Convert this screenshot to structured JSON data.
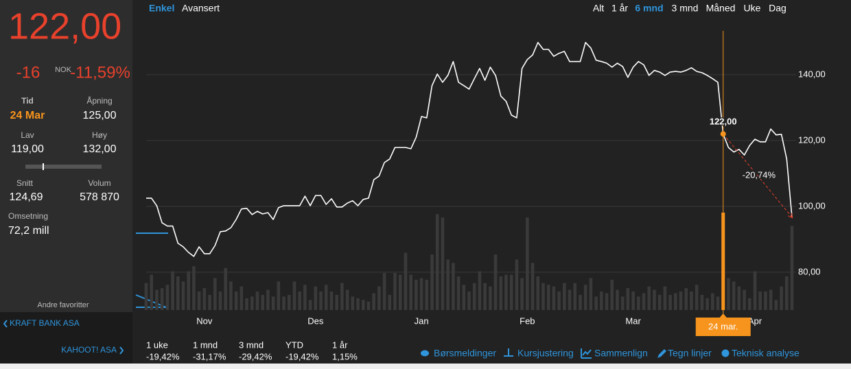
{
  "sidebar": {
    "price": "122,00",
    "change": "-16",
    "currency": "NOK",
    "change_pct": "-11,59%",
    "fields": [
      {
        "label": "Tid",
        "value": "24 Mar"
      },
      {
        "label": "Åpning",
        "value": "125,00"
      },
      {
        "label": "Lav",
        "value": "119,00"
      },
      {
        "label": "Høy",
        "value": "132,00"
      },
      {
        "label": "Snitt",
        "value": "124,69"
      },
      {
        "label": "Volum",
        "value": "578 870"
      },
      {
        "label": "Omsetning",
        "value": "72,2 mill"
      }
    ],
    "favorites_title": "Andre favoritter",
    "prev_link": "KRAFT BANK ASA",
    "next_link": "KAHOOT! ASA"
  },
  "modes": [
    "Enkel",
    "Avansert"
  ],
  "ranges": [
    "Alt",
    "1 år",
    "6 mnd",
    "3 mnd",
    "Måned",
    "Uke",
    "Dag"
  ],
  "returns": [
    {
      "label": "1 uke",
      "value": "-19,42%"
    },
    {
      "label": "1 mnd",
      "value": "-31,17%"
    },
    {
      "label": "3 mnd",
      "value": "-29,42%"
    },
    {
      "label": "YTD",
      "value": "-19,42%"
    },
    {
      "label": "1 år",
      "value": "1,15%"
    }
  ],
  "tools": [
    "Børsmeldinger",
    "Kursjustering",
    "Sammenlign",
    "Tegn linjer",
    "Teknisk analyse"
  ],
  "chart_data": {
    "type": "line",
    "color": "#ffffff",
    "volume_color": "#3a3a3a",
    "highlight_color": "#f7941d",
    "grid": true,
    "ylim": [
      68.5,
      162.7
    ],
    "yticks": [
      {
        "value": 80,
        "label": "80,00"
      },
      {
        "value": 100,
        "label": "100,00"
      },
      {
        "value": 120,
        "label": "120,00"
      },
      {
        "value": 140,
        "label": "140,00"
      }
    ],
    "categories": [
      null,
      null,
      null,
      null,
      null,
      null,
      null,
      null,
      null,
      null,
      null,
      "Nov",
      null,
      null,
      null,
      null,
      null,
      null,
      null,
      null,
      null,
      null,
      null,
      null,
      null,
      null,
      null,
      null,
      null,
      null,
      null,
      null,
      "Des",
      null,
      null,
      null,
      null,
      null,
      null,
      null,
      null,
      null,
      null,
      null,
      null,
      null,
      null,
      null,
      null,
      null,
      null,
      null,
      "Jan",
      null,
      null,
      null,
      null,
      null,
      null,
      null,
      null,
      null,
      null,
      null,
      null,
      null,
      null,
      null,
      null,
      null,
      null,
      null,
      "Feb",
      null,
      null,
      null,
      null,
      null,
      null,
      null,
      null,
      null,
      null,
      null,
      null,
      null,
      null,
      null,
      null,
      null,
      null,
      null,
      "Mar",
      null,
      null,
      null,
      null,
      null,
      null,
      null,
      null,
      null,
      null,
      null,
      null,
      null,
      null,
      null,
      null,
      null,
      null,
      null,
      null,
      null,
      null,
      "Apr",
      null,
      null,
      null,
      null,
      null,
      null,
      null
    ],
    "values": [
      102.5,
      102.5,
      100.2,
      95.0,
      94.0,
      94.0,
      88.8,
      87.7,
      86.0,
      84.8,
      87.7,
      85.6,
      85.6,
      88.1,
      92.3,
      92.5,
      93.5,
      96.0,
      99.2,
      99.4,
      97.5,
      98.5,
      97.7,
      98.1,
      96.0,
      99.6,
      100.2,
      100.2,
      100.2,
      100.2,
      103.1,
      100.2,
      103.3,
      103.3,
      100.6,
      102.3,
      99.8,
      99.8,
      101.0,
      101.7,
      100.2,
      102.1,
      102.5,
      108.1,
      109.2,
      113.3,
      114.4,
      117.9,
      117.9,
      117.9,
      117.5,
      121.0,
      127.3,
      126.9,
      136.7,
      140.2,
      137.7,
      139.8,
      144.0,
      137.7,
      136.7,
      135.6,
      138.8,
      141.9,
      138.3,
      142.3,
      139.8,
      133.5,
      131.9,
      127.7,
      126.9,
      141.9,
      144.6,
      146.0,
      149.8,
      147.7,
      147.7,
      145.6,
      146.5,
      147.1,
      144.0,
      144.0,
      144.0,
      149.8,
      148.1,
      144.4,
      144.0,
      143.5,
      142.3,
      143.5,
      142.5,
      139.2,
      142.3,
      144.0,
      143.0,
      139.8,
      141.3,
      140.8,
      139.8,
      140.8,
      141.0,
      140.8,
      141.3,
      142.1,
      141.0,
      140.6,
      139.8,
      138.8,
      137.7,
      122.0,
      117.9,
      116.5,
      117.3,
      115.6,
      118.5,
      120.4,
      119.6,
      119.6,
      123.5,
      121.7,
      121.9,
      114.4,
      96.7
    ],
    "value_labels": [
      null,
      null,
      null,
      null,
      null,
      null,
      null,
      null,
      null,
      null,
      null,
      null,
      null,
      null,
      null,
      null,
      null,
      null,
      null,
      null,
      null,
      null,
      null,
      null,
      null,
      null,
      null,
      null,
      null,
      null,
      null,
      null,
      null,
      null,
      null,
      null,
      null,
      null,
      null,
      null,
      null,
      null,
      null,
      null,
      null,
      null,
      null,
      null,
      null,
      null,
      null,
      null,
      null,
      null,
      null,
      null,
      null,
      null,
      null,
      null,
      null,
      null,
      null,
      null,
      null,
      null,
      null,
      null,
      null,
      null,
      null,
      null,
      null,
      null,
      null,
      null,
      null,
      null,
      null,
      null,
      null,
      null,
      null,
      null,
      null,
      null,
      null,
      null,
      null,
      null,
      null,
      null,
      null,
      null,
      null,
      null,
      null,
      null,
      null,
      null,
      null,
      null,
      null,
      null,
      null,
      null,
      null,
      null,
      null,
      "122,00",
      null,
      null,
      null,
      null,
      null,
      null,
      null,
      null,
      null,
      null,
      null,
      null,
      null
    ],
    "volumes": [
      160000,
      210000,
      120000,
      130000,
      150000,
      230000,
      200000,
      170000,
      230000,
      260000,
      110000,
      130000,
      90000,
      190000,
      110000,
      250000,
      170000,
      110000,
      140000,
      70000,
      80000,
      110000,
      90000,
      120000,
      80000,
      170000,
      80000,
      90000,
      170000,
      110000,
      150000,
      60000,
      140000,
      110000,
      150000,
      110000,
      90000,
      160000,
      120000,
      80000,
      70000,
      60000,
      50000,
      100000,
      140000,
      220000,
      90000,
      220000,
      210000,
      340000,
      210000,
      180000,
      190000,
      180000,
      330000,
      570000,
      550000,
      300000,
      280000,
      200000,
      150000,
      110000,
      160000,
      230000,
      160000,
      140000,
      330000,
      200000,
      210000,
      210000,
      300000,
      190000,
      550000,
      280000,
      200000,
      160000,
      150000,
      140000,
      110000,
      160000,
      120000,
      160000,
      90000,
      150000,
      190000,
      80000,
      110000,
      100000,
      180000,
      120000,
      80000,
      130000,
      110000,
      80000,
      100000,
      140000,
      120000,
      90000,
      140000,
      90000,
      100000,
      110000,
      130000,
      110000,
      150000,
      90000,
      70000,
      100000,
      80000,
      578870,
      190000,
      170000,
      140000,
      120000,
      70000,
      230000,
      110000,
      110000,
      120000,
      60000,
      140000,
      200000,
      500000
    ],
    "crosshair_label": "24 mar.",
    "change_label": "-20,74%"
  }
}
